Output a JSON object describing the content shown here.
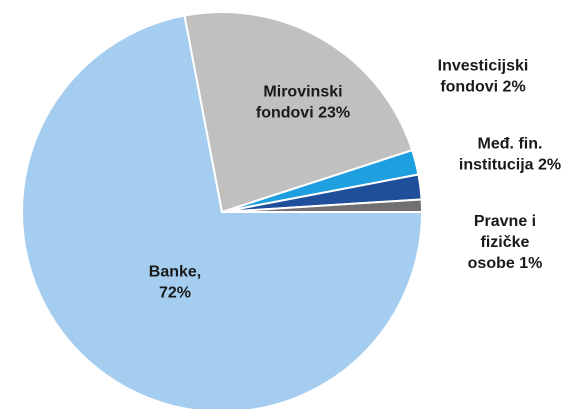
{
  "chart_data": {
    "type": "pie",
    "categories": [
      "Banke,\n72%",
      "Mirovinski\nfondovi 23%",
      "Investicijski\nfondovi 2%",
      "Međ. fin.\ninstitucija 2%",
      "Pravne i\nfizičke\nosobe 1%"
    ],
    "values": [
      72,
      23,
      2,
      2,
      1
    ],
    "colors": [
      "#a4cdf0",
      "#c0c0c0",
      "#1e9fe0",
      "#1f4e9a",
      "#707070"
    ]
  }
}
